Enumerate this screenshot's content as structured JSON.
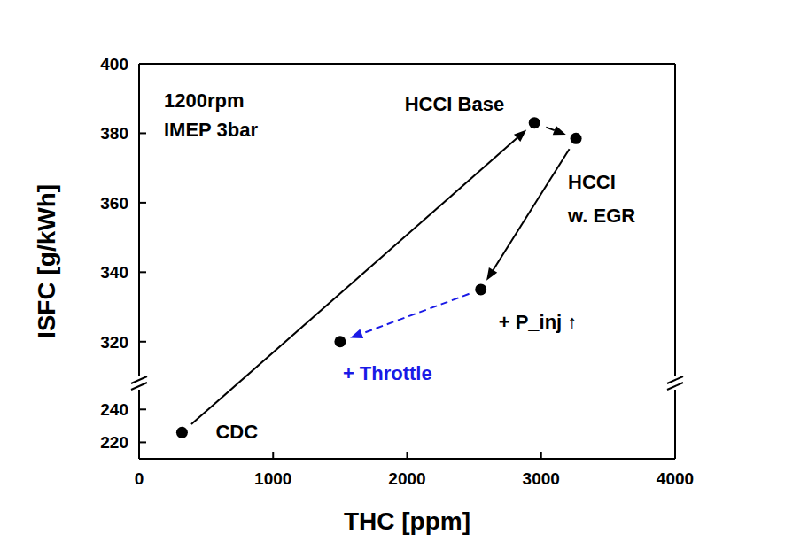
{
  "chart_data": [
    {
      "type": "scatter",
      "xlim": [
        0,
        4000
      ],
      "xticks": [
        0,
        1000,
        2000,
        3000,
        4000
      ],
      "ylim": [
        210,
        252
      ],
      "yticks": [
        220,
        240
      ],
      "xlabel": "THC [ppm]",
      "series": [
        {
          "name": "CDC",
          "color": "#000000",
          "x": [
            320
          ],
          "values": [
            226
          ]
        }
      ]
    },
    {
      "type": "scatter",
      "xlim": [
        0,
        4000
      ],
      "ylim": [
        310,
        400
      ],
      "yticks": [
        320,
        340,
        360,
        380,
        400
      ],
      "ylabel": "ISFC [g/kWh]",
      "tick_labels": "y",
      "annotations": [
        "1200rpm",
        "IMEP 3bar"
      ],
      "series": [
        {
          "name": "HCCI Base",
          "color": "#000000",
          "line_style": "solid",
          "x": [
            2950
          ],
          "values": [
            383
          ]
        },
        {
          "name": "HCCI w. EGR",
          "color": "#000000",
          "line_style": "solid",
          "x": [
            3260
          ],
          "values": [
            378.5
          ]
        },
        {
          "name": "+ P_inj ↑",
          "color": "#000000",
          "line_style": "solid",
          "x": [
            2550
          ],
          "values": [
            335
          ]
        },
        {
          "name": "+ Throttle",
          "color": "#1a1ae6",
          "line_style": "dashed",
          "x": [
            1500
          ],
          "values": [
            320
          ]
        }
      ]
    }
  ]
}
